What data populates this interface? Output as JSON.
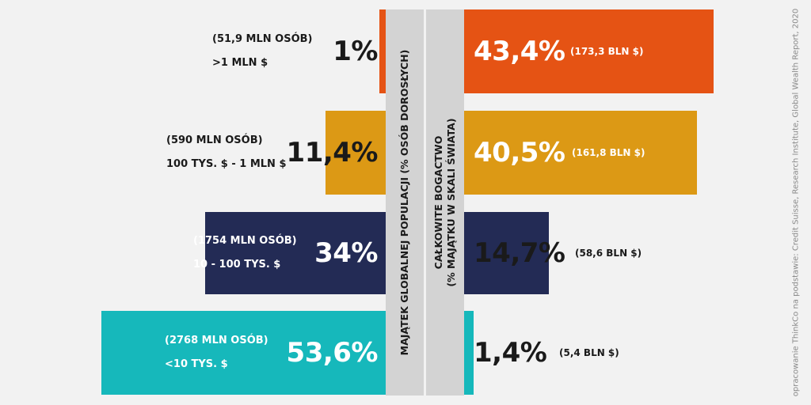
{
  "chart_data": {
    "type": "bar",
    "layout": "back-to-back horizontal bars",
    "left_axis_label": "MAJĄTEK GLOBALNEJ POPULACJI (% OSÓB DOROSŁYCH)",
    "right_axis_label_line1": "CAŁKOWITE BOGACTWO",
    "right_axis_label_line2": "(% MAJĄTKU W SKALI ŚWIATA)",
    "source": "opracowanie ThinkCo na podstawie: Credit Suisse, Research Institute, Global Wealth Report, 2020",
    "series": [
      {
        "name": "MAJĄTEK GLOBALNEJ POPULACJI (% OSÓB DOROSŁYCH)",
        "values": [
          1,
          11.4,
          34,
          53.6
        ]
      },
      {
        "name": "CAŁKOWITE BOGACTWO (% MAJĄTKU W SKALI ŚWIATA)",
        "values": [
          43.4,
          40.5,
          14.7,
          1.4
        ]
      }
    ],
    "rows": [
      {
        "range_label": ">1 MLN $",
        "people_label": "(51,9 MLN OSÓB)",
        "population_pct": 1,
        "population_pct_label": "1%",
        "wealth_pct": 43.4,
        "wealth_pct_label": "43,4%",
        "wealth_abs_label": "(173,3 BLN $)",
        "color": "#e55314"
      },
      {
        "range_label": "100 TYS. $ - 1 MLN $",
        "people_label": "(590 MLN OSÓB)",
        "population_pct": 11.4,
        "population_pct_label": "11,4%",
        "wealth_pct": 40.5,
        "wealth_pct_label": "40,5%",
        "wealth_abs_label": "(161,8 BLN $)",
        "color": "#dc9915"
      },
      {
        "range_label": "10 - 100 TYS. $",
        "people_label": "(1754 MLN OSÓB)",
        "population_pct": 34,
        "population_pct_label": "34%",
        "wealth_pct": 14.7,
        "wealth_pct_label": "14,7%",
        "wealth_abs_label": "(58,6 BLN $)",
        "color": "#232b55"
      },
      {
        "range_label": "<10 TYS. $",
        "people_label": "(2768 MLN OSÓB)",
        "population_pct": 53.6,
        "population_pct_label": "53,6%",
        "wealth_pct": 1.4,
        "wealth_pct_label": "1,4%",
        "wealth_abs_label": "(5,4 BLN $)",
        "color": "#16b8bb"
      }
    ]
  }
}
